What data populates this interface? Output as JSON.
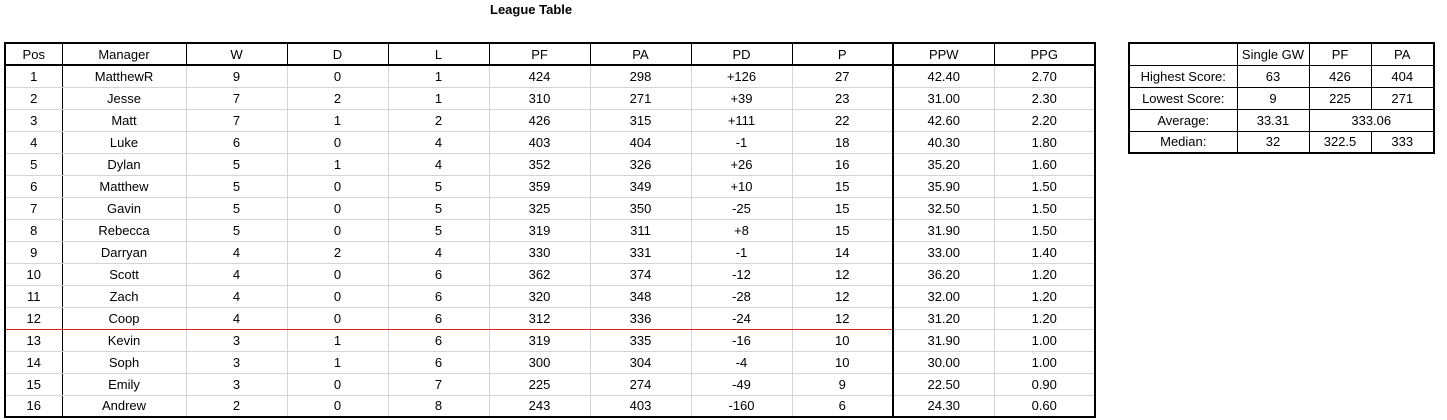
{
  "title": "League Table",
  "league": {
    "headers": [
      "Pos",
      "Manager",
      "W",
      "D",
      "L",
      "PF",
      "PA",
      "PD",
      "P",
      "PPW",
      "PPG"
    ],
    "rows": [
      [
        "1",
        "MatthewR",
        "9",
        "0",
        "1",
        "424",
        "298",
        "+126",
        "27",
        "42.40",
        "2.70"
      ],
      [
        "2",
        "Jesse",
        "7",
        "2",
        "1",
        "310",
        "271",
        "+39",
        "23",
        "31.00",
        "2.30"
      ],
      [
        "3",
        "Matt",
        "7",
        "1",
        "2",
        "426",
        "315",
        "+111",
        "22",
        "42.60",
        "2.20"
      ],
      [
        "4",
        "Luke",
        "6",
        "0",
        "4",
        "403",
        "404",
        "-1",
        "18",
        "40.30",
        "1.80"
      ],
      [
        "5",
        "Dylan",
        "5",
        "1",
        "4",
        "352",
        "326",
        "+26",
        "16",
        "35.20",
        "1.60"
      ],
      [
        "6",
        "Matthew",
        "5",
        "0",
        "5",
        "359",
        "349",
        "+10",
        "15",
        "35.90",
        "1.50"
      ],
      [
        "7",
        "Gavin",
        "5",
        "0",
        "5",
        "325",
        "350",
        "-25",
        "15",
        "32.50",
        "1.50"
      ],
      [
        "8",
        "Rebecca",
        "5",
        "0",
        "5",
        "319",
        "311",
        "+8",
        "15",
        "31.90",
        "1.50"
      ],
      [
        "9",
        "Darryan",
        "4",
        "2",
        "4",
        "330",
        "331",
        "-1",
        "14",
        "33.00",
        "1.40"
      ],
      [
        "10",
        "Scott",
        "4",
        "0",
        "6",
        "362",
        "374",
        "-12",
        "12",
        "36.20",
        "1.20"
      ],
      [
        "11",
        "Zach",
        "4",
        "0",
        "6",
        "320",
        "348",
        "-28",
        "12",
        "32.00",
        "1.20"
      ],
      [
        "12",
        "Coop",
        "4",
        "0",
        "6",
        "312",
        "336",
        "-24",
        "12",
        "31.20",
        "1.20"
      ],
      [
        "13",
        "Kevin",
        "3",
        "1",
        "6",
        "319",
        "335",
        "-16",
        "10",
        "31.90",
        "1.00"
      ],
      [
        "14",
        "Soph",
        "3",
        "1",
        "6",
        "300",
        "304",
        "-4",
        "10",
        "30.00",
        "1.00"
      ],
      [
        "15",
        "Emily",
        "3",
        "0",
        "7",
        "225",
        "274",
        "-49",
        "9",
        "22.50",
        "0.90"
      ],
      [
        "16",
        "Andrew",
        "2",
        "0",
        "8",
        "243",
        "403",
        "-160",
        "6",
        "24.30",
        "0.60"
      ]
    ],
    "cutoff_after_row": 12,
    "cutoff_color": "#dd2222"
  },
  "stats": {
    "headers": [
      "",
      "Single GW",
      "PF",
      "PA"
    ],
    "rows": [
      {
        "label": "Highest Score:",
        "gw": "63",
        "pf": "426",
        "pa": "404"
      },
      {
        "label": "Lowest Score:",
        "gw": "9",
        "pf": "225",
        "pa": "271"
      },
      {
        "label": "Average:",
        "gw": "33.31",
        "merged": "333.06"
      },
      {
        "label": "Median:",
        "gw": "32",
        "pf": "322.5",
        "pa": "333"
      }
    ]
  }
}
